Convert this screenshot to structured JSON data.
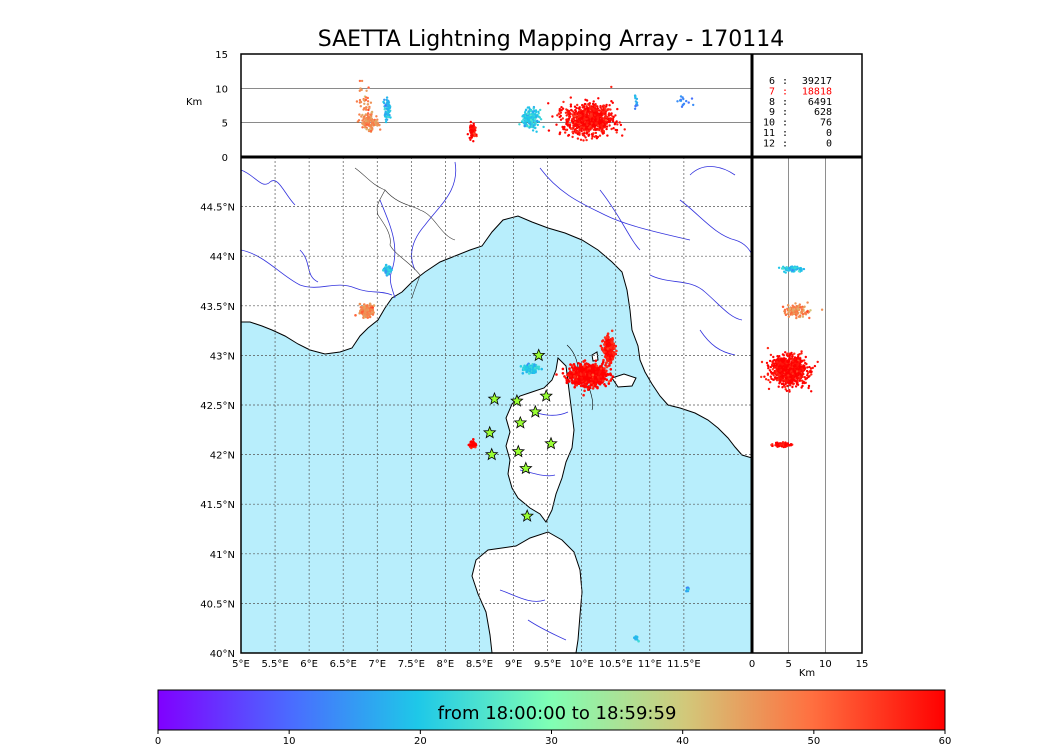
{
  "title": "SAETTA Lightning Mapping Array - 170114",
  "colorbar": {
    "label": "from 18:00:00 to 18:59:59",
    "ticks": [
      "0",
      "10",
      "20",
      "30",
      "40",
      "50",
      "60"
    ],
    "range": [
      0,
      60
    ]
  },
  "legend": [
    {
      "key": "6",
      "sep": ":",
      "count": "39217",
      "color": "#000000"
    },
    {
      "key": "7",
      "sep": ":",
      "count": "18818",
      "color": "#ff0000"
    },
    {
      "key": "8",
      "sep": ":",
      "count": "6491",
      "color": "#000000"
    },
    {
      "key": "9",
      "sep": ":",
      "count": "628",
      "color": "#000000"
    },
    {
      "key": "10",
      "sep": ":",
      "count": "76",
      "color": "#000000"
    },
    {
      "key": "11",
      "sep": ":",
      "count": "0",
      "color": "#000000"
    },
    {
      "key": "12",
      "sep": ":",
      "count": "0",
      "color": "#000000"
    }
  ],
  "colors": {
    "sea": "#b8eefc",
    "river": "#3333dd",
    "border": "#333333",
    "station_fill": "#99ff33"
  },
  "chart_data": [
    {
      "type": "scatter",
      "panel": "altitude-vs-longitude",
      "ylabel": "Km",
      "xlim": [
        5,
        12.5
      ],
      "ylim": [
        0,
        15
      ],
      "yticks": [
        "0",
        "5",
        "10",
        "15"
      ],
      "grid_y": [
        5,
        10
      ],
      "clusters": [
        {
          "lon": 6.9,
          "alt": 5,
          "spread_lon": 0.12,
          "spread_alt": 1.2,
          "time": 47,
          "n": 120
        },
        {
          "lon": 6.8,
          "alt": 8,
          "spread_lon": 0.1,
          "spread_alt": 2.5,
          "time": 48,
          "n": 40
        },
        {
          "lon": 7.15,
          "alt": 7,
          "spread_lon": 0.05,
          "spread_alt": 1.6,
          "time": 18,
          "n": 70
        },
        {
          "lon": 8.4,
          "alt": 3.8,
          "spread_lon": 0.05,
          "spread_alt": 1.1,
          "time": 60,
          "n": 70
        },
        {
          "lon": 9.25,
          "alt": 5.5,
          "spread_lon": 0.12,
          "spread_alt": 1.3,
          "time": 20,
          "n": 200
        },
        {
          "lon": 10.1,
          "alt": 5.5,
          "spread_lon": 0.35,
          "spread_alt": 2.2,
          "time": 59,
          "n": 900
        },
        {
          "lon": 10.8,
          "alt": 8,
          "spread_lon": 0.05,
          "spread_alt": 1.2,
          "time": 16,
          "n": 15
        },
        {
          "lon": 11.5,
          "alt": 8,
          "spread_lon": 0.1,
          "spread_alt": 1.0,
          "time": 14,
          "n": 15
        }
      ]
    },
    {
      "type": "scatter",
      "panel": "map-plan-view",
      "xlim": [
        5,
        12.5
      ],
      "ylim": [
        40,
        45
      ],
      "xticks": [
        "5°E",
        "5.5°E",
        "6°E",
        "6.5°E",
        "7°E",
        "7.5°E",
        "8°E",
        "8.5°E",
        "9°E",
        "9.5°E",
        "10°E",
        "10.5°E",
        "11°E",
        "11.5°E"
      ],
      "yticks": [
        "40°N",
        "40.5°N",
        "41°N",
        "41.5°N",
        "42°N",
        "42.5°N",
        "43°N",
        "43.5°N",
        "44°N",
        "44.5°N"
      ],
      "clusters": [
        {
          "lon": 7.15,
          "lat": 43.86,
          "spread_lon": 0.06,
          "spread_lat": 0.04,
          "time": 18,
          "n": 60
        },
        {
          "lon": 6.85,
          "lat": 43.45,
          "spread_lon": 0.1,
          "spread_lat": 0.06,
          "time": 47,
          "n": 120
        },
        {
          "lon": 9.25,
          "lat": 42.87,
          "spread_lon": 0.1,
          "spread_lat": 0.04,
          "time": 20,
          "n": 150
        },
        {
          "lon": 10.1,
          "lat": 42.8,
          "spread_lon": 0.25,
          "spread_lat": 0.1,
          "time": 60,
          "n": 900
        },
        {
          "lon": 10.4,
          "lat": 43.05,
          "spread_lon": 0.08,
          "spread_lat": 0.12,
          "time": 58,
          "n": 250
        },
        {
          "lon": 8.4,
          "lat": 42.1,
          "spread_lon": 0.05,
          "spread_lat": 0.03,
          "time": 60,
          "n": 60
        },
        {
          "lon": 11.55,
          "lat": 40.65,
          "spread_lon": 0.03,
          "spread_lat": 0.03,
          "time": 16,
          "n": 10
        },
        {
          "lon": 10.8,
          "lat": 40.15,
          "spread_lon": 0.03,
          "spread_lat": 0.03,
          "time": 18,
          "n": 10
        }
      ],
      "stations": [
        {
          "lon": 9.37,
          "lat": 43.0
        },
        {
          "lon": 8.72,
          "lat": 42.56
        },
        {
          "lon": 9.05,
          "lat": 42.54
        },
        {
          "lon": 9.48,
          "lat": 42.59
        },
        {
          "lon": 9.32,
          "lat": 42.43
        },
        {
          "lon": 9.1,
          "lat": 42.32
        },
        {
          "lon": 8.65,
          "lat": 42.22
        },
        {
          "lon": 9.55,
          "lat": 42.11
        },
        {
          "lon": 8.68,
          "lat": 42.0
        },
        {
          "lon": 9.07,
          "lat": 42.03
        },
        {
          "lon": 9.18,
          "lat": 41.86
        },
        {
          "lon": 9.2,
          "lat": 41.38
        }
      ]
    },
    {
      "type": "scatter",
      "panel": "latitude-vs-altitude",
      "xlabel": "Km",
      "xlim": [
        0,
        15
      ],
      "ylim": [
        40,
        45
      ],
      "xticks": [
        "0",
        "5",
        "10",
        "15"
      ],
      "grid_x": [
        5,
        10
      ],
      "clusters": [
        {
          "alt": 5.5,
          "lat": 43.87,
          "spread_alt": 1.2,
          "spread_lat": 0.03,
          "time": 20,
          "n": 80
        },
        {
          "alt": 6,
          "lat": 43.45,
          "spread_alt": 2,
          "spread_lat": 0.06,
          "time": 47,
          "n": 120
        },
        {
          "alt": 5,
          "lat": 42.85,
          "spread_alt": 2.4,
          "spread_lat": 0.14,
          "time": 60,
          "n": 900
        },
        {
          "alt": 4,
          "lat": 42.1,
          "spread_alt": 1.2,
          "spread_lat": 0.02,
          "time": 60,
          "n": 70
        }
      ]
    }
  ]
}
